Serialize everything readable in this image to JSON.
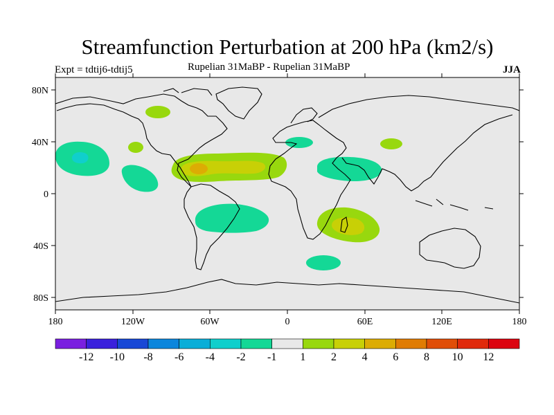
{
  "header": {
    "title": "Streamfunction Perturbation at 200 hPa (km2/s)",
    "experiment": "Expt = tdtij6-tdtij5",
    "subtitle": "Rupelian  31MaBP - Rupelian  31MaBP",
    "season": "JJA"
  },
  "colors": {
    "background": "#e8e8e8",
    "coastline": "#000000"
  },
  "chart_data": {
    "type": "map-contour",
    "title": "Streamfunction Perturbation at 200 hPa (km2/s)",
    "units": "km2/s",
    "lat_range": [
      -90,
      90
    ],
    "lon_range": [
      -180,
      180
    ],
    "lat_ticks": [
      "80N",
      "40N",
      "0",
      "40S",
      "80S"
    ],
    "lon_ticks": [
      "180",
      "120W",
      "60W",
      "0",
      "60E",
      "120E",
      "180"
    ],
    "colorbar": {
      "labels": [
        "-12",
        "-10",
        "-8",
        "-6",
        "-4",
        "-2",
        "-1",
        "1",
        "2",
        "4",
        "6",
        "8",
        "10",
        "12"
      ],
      "colors": [
        "#7a1fe0",
        "#3a20dc",
        "#1848d6",
        "#0c86dc",
        "#0aaed8",
        "#10cfcc",
        "#14d896",
        "#e8e8e8",
        "#98d80e",
        "#c8d006",
        "#dcac04",
        "#e07c04",
        "#e04e08",
        "#e02a0c",
        "#dc0410"
      ]
    },
    "anomalies": [
      {
        "name": "subtropical-atlantic-ridge",
        "lon": -75,
        "lat": 20,
        "sign": "positive",
        "max_level": 4
      },
      {
        "name": "north-pacific-low",
        "lon": -165,
        "lat": 28,
        "sign": "negative",
        "max_level": -4
      },
      {
        "name": "south-atlantic-low",
        "lon": -38,
        "lat": -20,
        "sign": "negative",
        "max_level": -2
      },
      {
        "name": "madagascar-ridge",
        "lon": 48,
        "lat": -25,
        "sign": "positive",
        "max_level": 4
      },
      {
        "name": "arabian-low",
        "lon": 48,
        "lat": 18,
        "sign": "negative",
        "max_level": -2
      }
    ]
  }
}
